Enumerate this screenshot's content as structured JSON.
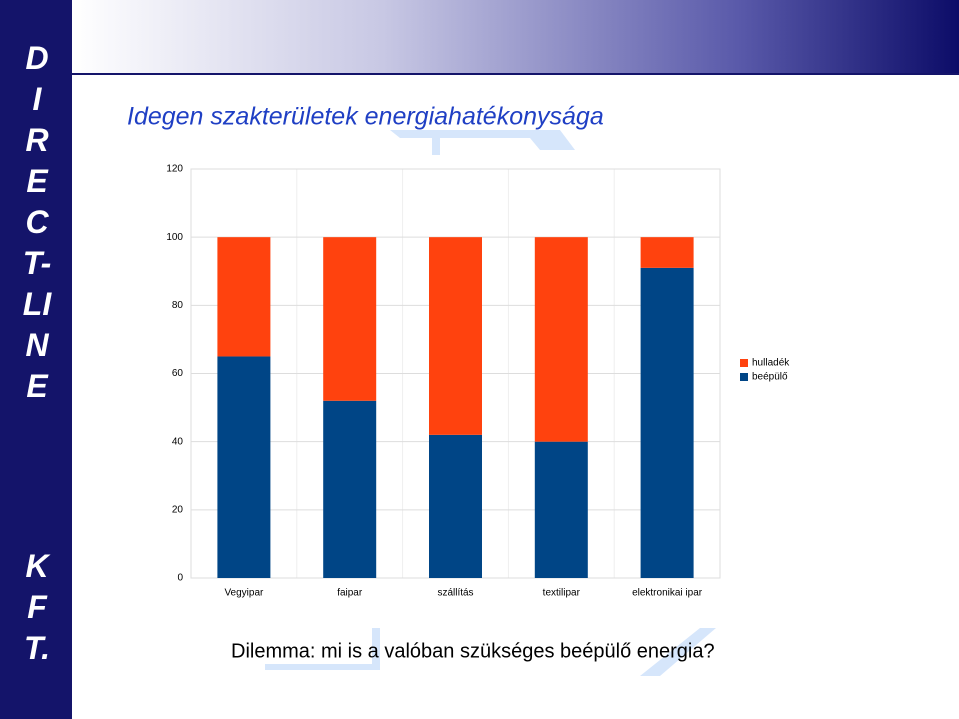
{
  "sidebar": {
    "words": [
      "DIRECT-LINE",
      "KFT."
    ]
  },
  "caption": "Dilemma: mi is a valóban szükséges beépülő energia?",
  "chart_data": {
    "type": "stacked_bar",
    "title": "Idegen szakterületek energiahatékonysága",
    "categories": [
      "Vegyipar",
      "faipar",
      "szállítás",
      "textilipar",
      "elektronikai ipar"
    ],
    "series": [
      {
        "name": "beépülő",
        "color": "#004586",
        "values": [
          65,
          52,
          42,
          40,
          91
        ]
      },
      {
        "name": "hulladék",
        "color": "#ff420e",
        "values": [
          35,
          48,
          58,
          60,
          9
        ]
      }
    ],
    "ylim": [
      0,
      120
    ],
    "yticks": [
      0,
      20,
      40,
      60,
      80,
      100,
      120
    ],
    "grid": true,
    "legend": "right"
  }
}
